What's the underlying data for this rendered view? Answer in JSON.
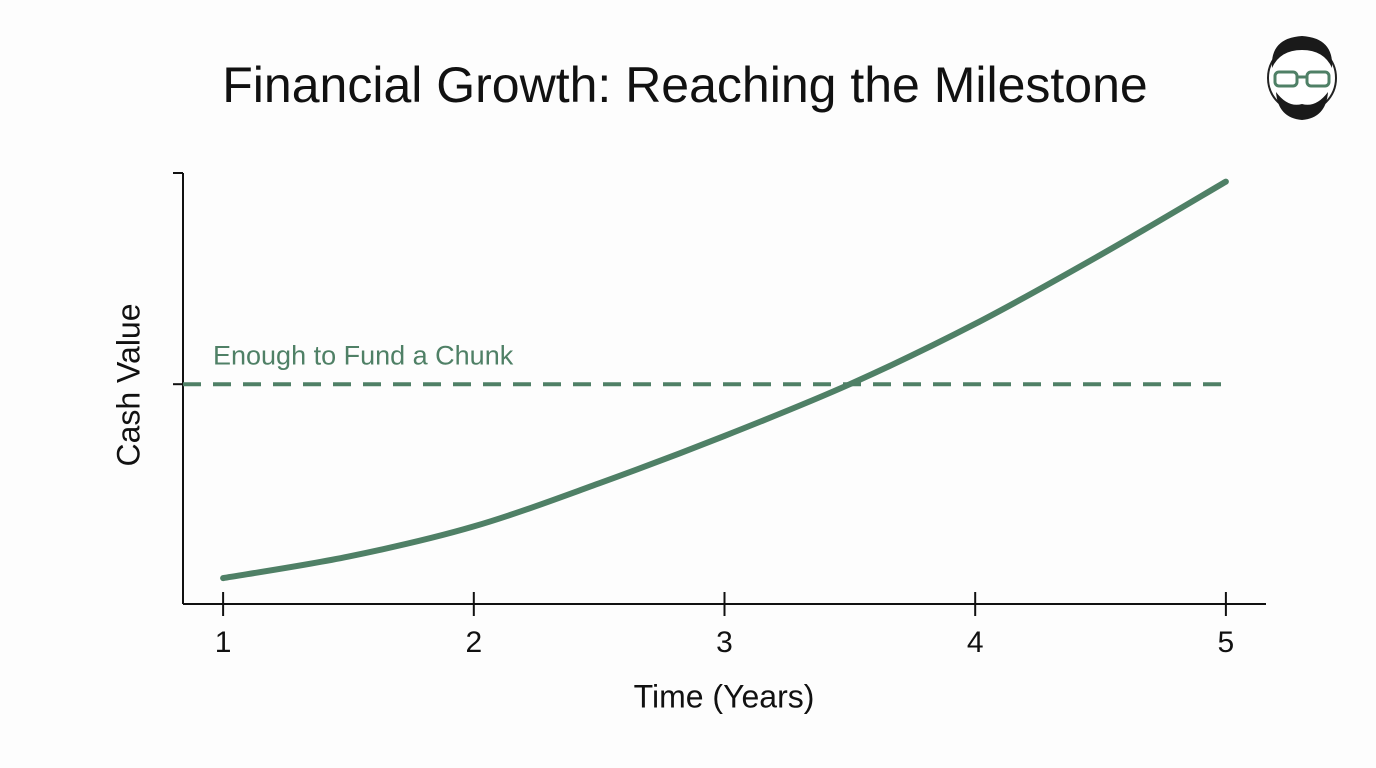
{
  "chart_data": {
    "type": "line",
    "title": "Financial Growth: Reaching the Milestone",
    "x_label": "Time (Years)",
    "y_label": "Cash Value",
    "x": [
      1,
      1.5,
      2,
      2.5,
      3,
      3.5,
      4,
      4.5,
      5
    ],
    "series": [
      {
        "color": "#4f8066",
        "values": [
          6,
          11,
          18,
          28,
          39,
          51,
          65,
          81,
          98
        ]
      }
    ],
    "xlim": [
      0.84,
      5.16
    ],
    "xticks": [
      1,
      2,
      3,
      4,
      5
    ],
    "ylim": [
      0,
      100
    ],
    "threshold": {
      "value": 51,
      "label": "Enough to Fund a Chunk",
      "color": "#4f8066"
    }
  }
}
